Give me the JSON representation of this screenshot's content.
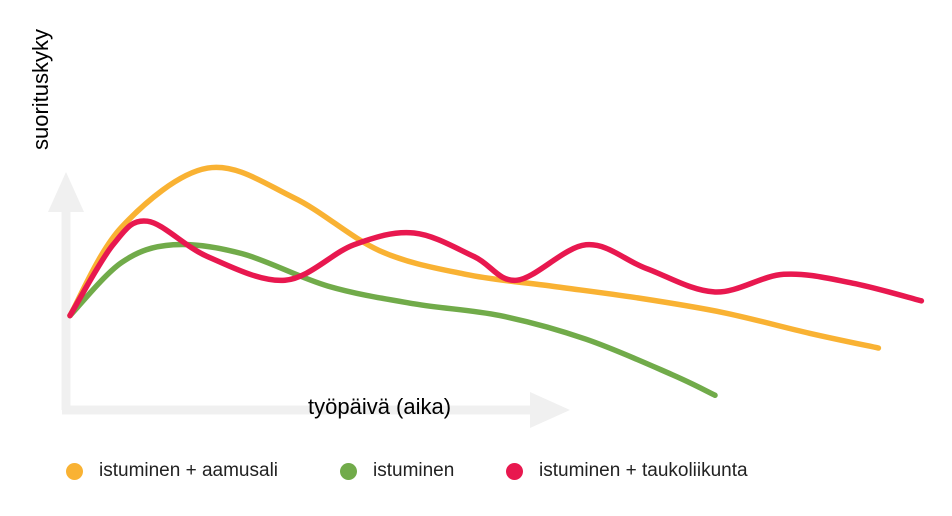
{
  "chart_data": {
    "type": "line",
    "title": "",
    "xlabel": "työpäivä (aika)",
    "ylabel": "suorituskyky",
    "grid": false,
    "legend_position": "bottom",
    "series": [
      {
        "name": "istuminen + aamusali",
        "color": "#F9B233",
        "x": [
          0,
          0.06,
          0.16,
          0.26,
          0.36,
          0.46,
          0.56,
          0.66,
          0.76,
          0.86,
          0.94
        ],
        "y": [
          0.32,
          0.62,
          0.82,
          0.72,
          0.54,
          0.46,
          0.42,
          0.38,
          0.33,
          0.26,
          0.21
        ]
      },
      {
        "name": "istuminen",
        "color": "#71AB4A",
        "x": [
          0,
          0.06,
          0.12,
          0.2,
          0.3,
          0.4,
          0.5,
          0.6,
          0.7,
          0.75
        ],
        "y": [
          0.32,
          0.5,
          0.56,
          0.53,
          0.42,
          0.36,
          0.32,
          0.24,
          0.12,
          0.05
        ]
      },
      {
        "name": "istuminen + taukoliikunta",
        "color": "#E8184F",
        "x": [
          0,
          0.05,
          0.09,
          0.16,
          0.25,
          0.33,
          0.4,
          0.47,
          0.52,
          0.6,
          0.67,
          0.75,
          0.83,
          0.91,
          0.99
        ],
        "y": [
          0.32,
          0.56,
          0.64,
          0.52,
          0.44,
          0.56,
          0.6,
          0.52,
          0.44,
          0.56,
          0.48,
          0.4,
          0.46,
          0.43,
          0.37
        ]
      }
    ]
  }
}
